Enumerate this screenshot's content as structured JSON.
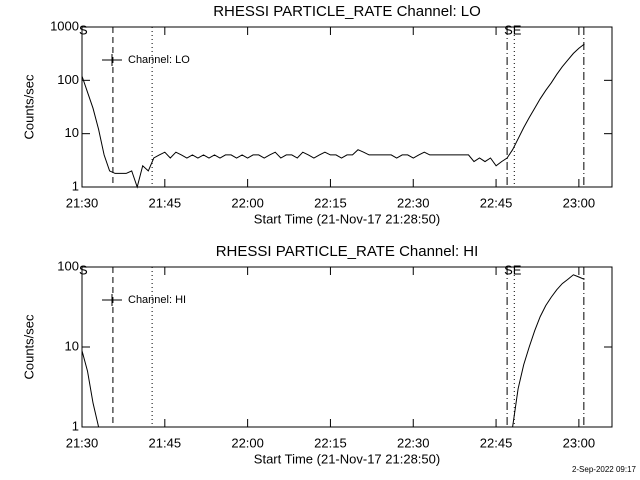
{
  "chart_data": [
    {
      "type": "line",
      "title": "RHESSI PARTICLE_RATE Channel: LO",
      "x_label": "Start Time (21-Nov-17 21:28:50)",
      "y_label": "Counts/sec",
      "log_y": true,
      "legend": "upper left",
      "xlim": [
        1290,
        1386
      ],
      "ylim": [
        1,
        1000
      ],
      "xticks": [
        {
          "value": 1290,
          "label": "21:30"
        },
        {
          "value": 1305,
          "label": "21:45"
        },
        {
          "value": 1320,
          "label": "22:00"
        },
        {
          "value": 1335,
          "label": "22:15"
        },
        {
          "value": 1350,
          "label": "22:30"
        },
        {
          "value": 1365,
          "label": "22:45"
        },
        {
          "value": 1380,
          "label": "23:00"
        }
      ],
      "yticks": [
        1,
        10,
        100,
        1000
      ],
      "event_lines": [
        {
          "x": 1295.6,
          "style": "dashed"
        },
        {
          "x": 1302.7,
          "style": "dotted"
        },
        {
          "x": 1367,
          "style": "dashdot"
        },
        {
          "x": 1368.3,
          "style": "dotted"
        },
        {
          "x": 1380.9,
          "style": "dashdot"
        }
      ],
      "annotations": [
        {
          "text": "S",
          "x": 1290
        },
        {
          "text": "SE",
          "x": 1367
        }
      ],
      "x": [
        1290,
        1291,
        1292,
        1293,
        1294,
        1295,
        1296,
        1297,
        1298,
        1299,
        1300,
        1301,
        1302,
        1303,
        1304,
        1305,
        1306,
        1307,
        1308,
        1309,
        1310,
        1311,
        1312,
        1313,
        1314,
        1315,
        1316,
        1317,
        1318,
        1319,
        1320,
        1321,
        1322,
        1323,
        1324,
        1325,
        1326,
        1327,
        1328,
        1329,
        1330,
        1331,
        1332,
        1333,
        1334,
        1335,
        1336,
        1337,
        1338,
        1339,
        1340,
        1341,
        1342,
        1343,
        1344,
        1345,
        1346,
        1347,
        1348,
        1349,
        1350,
        1351,
        1352,
        1353,
        1354,
        1355,
        1356,
        1357,
        1358,
        1359,
        1360,
        1361,
        1362,
        1363,
        1364,
        1365,
        1366,
        1367,
        1368,
        1369,
        1370,
        1371,
        1372,
        1373,
        1374,
        1375,
        1376,
        1377,
        1378,
        1379,
        1380,
        1381
      ],
      "series": [
        {
          "name": "Channel: LO",
          "color": "#000000",
          "values": [
            120,
            60,
            30,
            12,
            4,
            2,
            1.8,
            1.8,
            1.8,
            2,
            1,
            2.5,
            2,
            3.5,
            4,
            4.5,
            3.5,
            4.5,
            4,
            3.5,
            4,
            3.5,
            4,
            3.5,
            4,
            3.5,
            4,
            4,
            3.5,
            4,
            3.5,
            4,
            4,
            3.5,
            4,
            4.5,
            3.5,
            4,
            4,
            3.5,
            4.5,
            4,
            3.5,
            4,
            4.5,
            4,
            4,
            3.5,
            4,
            4,
            5,
            4.5,
            4,
            4,
            4,
            4,
            4,
            3.5,
            4,
            4,
            3.5,
            4,
            4.5,
            4,
            4,
            4,
            4,
            4,
            4,
            4,
            4,
            3,
            3.5,
            3,
            3.5,
            2.5,
            3,
            3.5,
            5,
            8,
            13,
            20,
            30,
            45,
            65,
            90,
            130,
            180,
            240,
            320,
            400,
            480
          ]
        }
      ]
    },
    {
      "type": "line",
      "title": "RHESSI PARTICLE_RATE Channel: HI",
      "x_label": "Start Time (21-Nov-17 21:28:50)",
      "y_label": "Counts/sec",
      "log_y": true,
      "legend": "upper left",
      "xlim": [
        1290,
        1386
      ],
      "ylim": [
        1,
        100
      ],
      "xticks": [
        {
          "value": 1290,
          "label": "21:30"
        },
        {
          "value": 1305,
          "label": "21:45"
        },
        {
          "value": 1320,
          "label": "22:00"
        },
        {
          "value": 1335,
          "label": "22:15"
        },
        {
          "value": 1350,
          "label": "22:30"
        },
        {
          "value": 1365,
          "label": "22:45"
        },
        {
          "value": 1380,
          "label": "23:00"
        }
      ],
      "yticks": [
        1,
        10,
        100
      ],
      "event_lines": [
        {
          "x": 1295.6,
          "style": "dashed"
        },
        {
          "x": 1302.7,
          "style": "dotted"
        },
        {
          "x": 1367,
          "style": "dashdot"
        },
        {
          "x": 1368.3,
          "style": "dotted"
        },
        {
          "x": 1380.9,
          "style": "dashdot"
        }
      ],
      "annotations": [
        {
          "text": "S",
          "x": 1290
        },
        {
          "text": "SE",
          "x": 1367
        }
      ],
      "x": [
        1290,
        1291,
        1292,
        1293,
        1294,
        1368,
        1369,
        1370,
        1371,
        1372,
        1373,
        1374,
        1375,
        1376,
        1377,
        1378,
        1379,
        1380,
        1381
      ],
      "series": [
        {
          "name": "Channel: HI",
          "color": "#000000",
          "values": [
            9,
            5,
            2,
            1,
            null,
            1,
            3,
            6,
            10,
            16,
            24,
            33,
            42,
            52,
            62,
            70,
            80,
            75,
            70
          ]
        }
      ]
    }
  ],
  "footer": "2-Sep-2022 09:17"
}
